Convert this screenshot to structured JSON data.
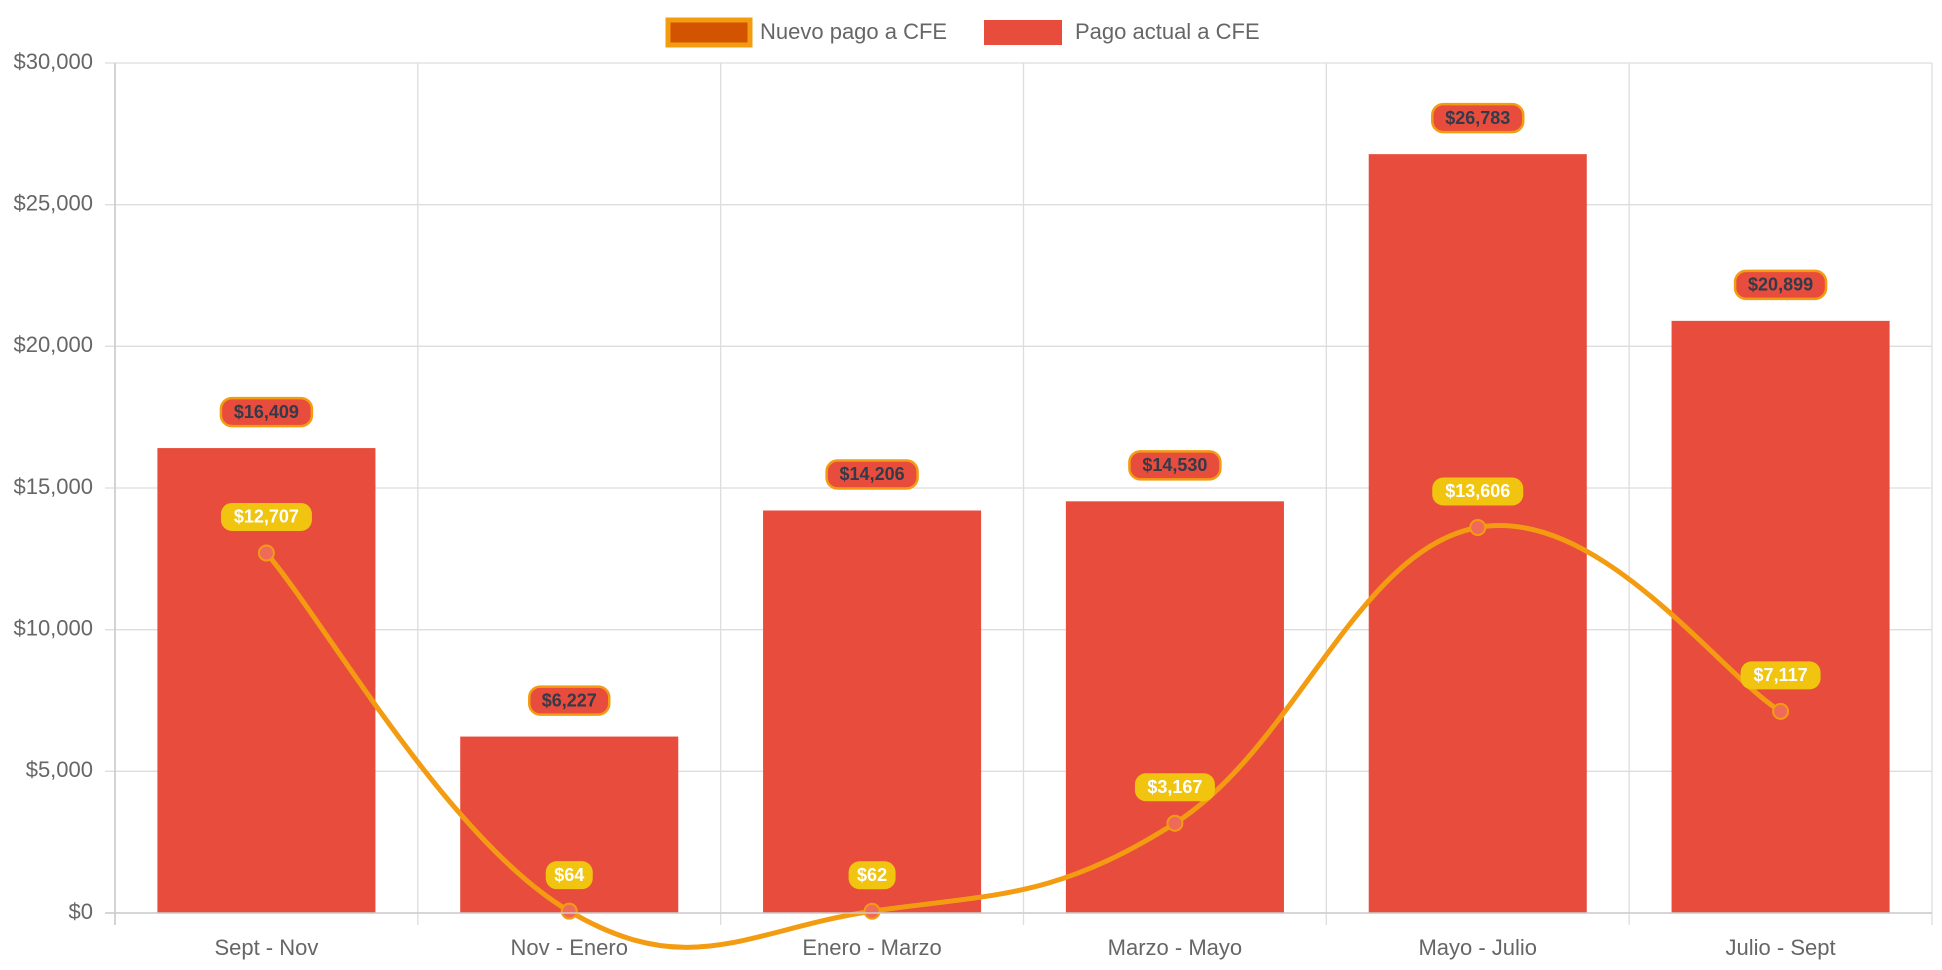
{
  "chart_data": {
    "type": "bar",
    "categories": [
      "Sept - Nov",
      "Nov - Enero",
      "Enero - Marzo",
      "Marzo - Mayo",
      "Mayo - Julio",
      "Julio - Sept"
    ],
    "series": [
      {
        "name": "Nuevo pago a CFE",
        "kind": "line",
        "values": [
          12707,
          64,
          62,
          3167,
          13606,
          7117
        ],
        "labels": [
          "$12,707",
          "$64",
          "$62",
          "$3,167",
          "$13,606",
          "$7,117"
        ],
        "color": "#f39c12",
        "label_background": "#f1c40f",
        "point_color": "#f06a5a",
        "legend_fill": "#d35400"
      },
      {
        "name": "Pago actual a CFE",
        "kind": "bar",
        "values": [
          16409,
          6227,
          14206,
          14530,
          26783,
          20899
        ],
        "labels": [
          "$16,409",
          "$6,227",
          "$14,206",
          "$14,530",
          "$26,783",
          "$20,899"
        ],
        "color": "#e74c3c",
        "label_border": "#f39c12"
      }
    ],
    "ylim": [
      0,
      30000
    ],
    "y_ticks": [
      0,
      5000,
      10000,
      15000,
      20000,
      25000,
      30000
    ],
    "y_tick_labels": [
      "$0",
      "$5,000",
      "$10,000",
      "$15,000",
      "$20,000",
      "$25,000",
      "$30,000"
    ],
    "grid": true,
    "legend_position": "top-center",
    "title": "",
    "xlabel": "",
    "ylabel": ""
  }
}
